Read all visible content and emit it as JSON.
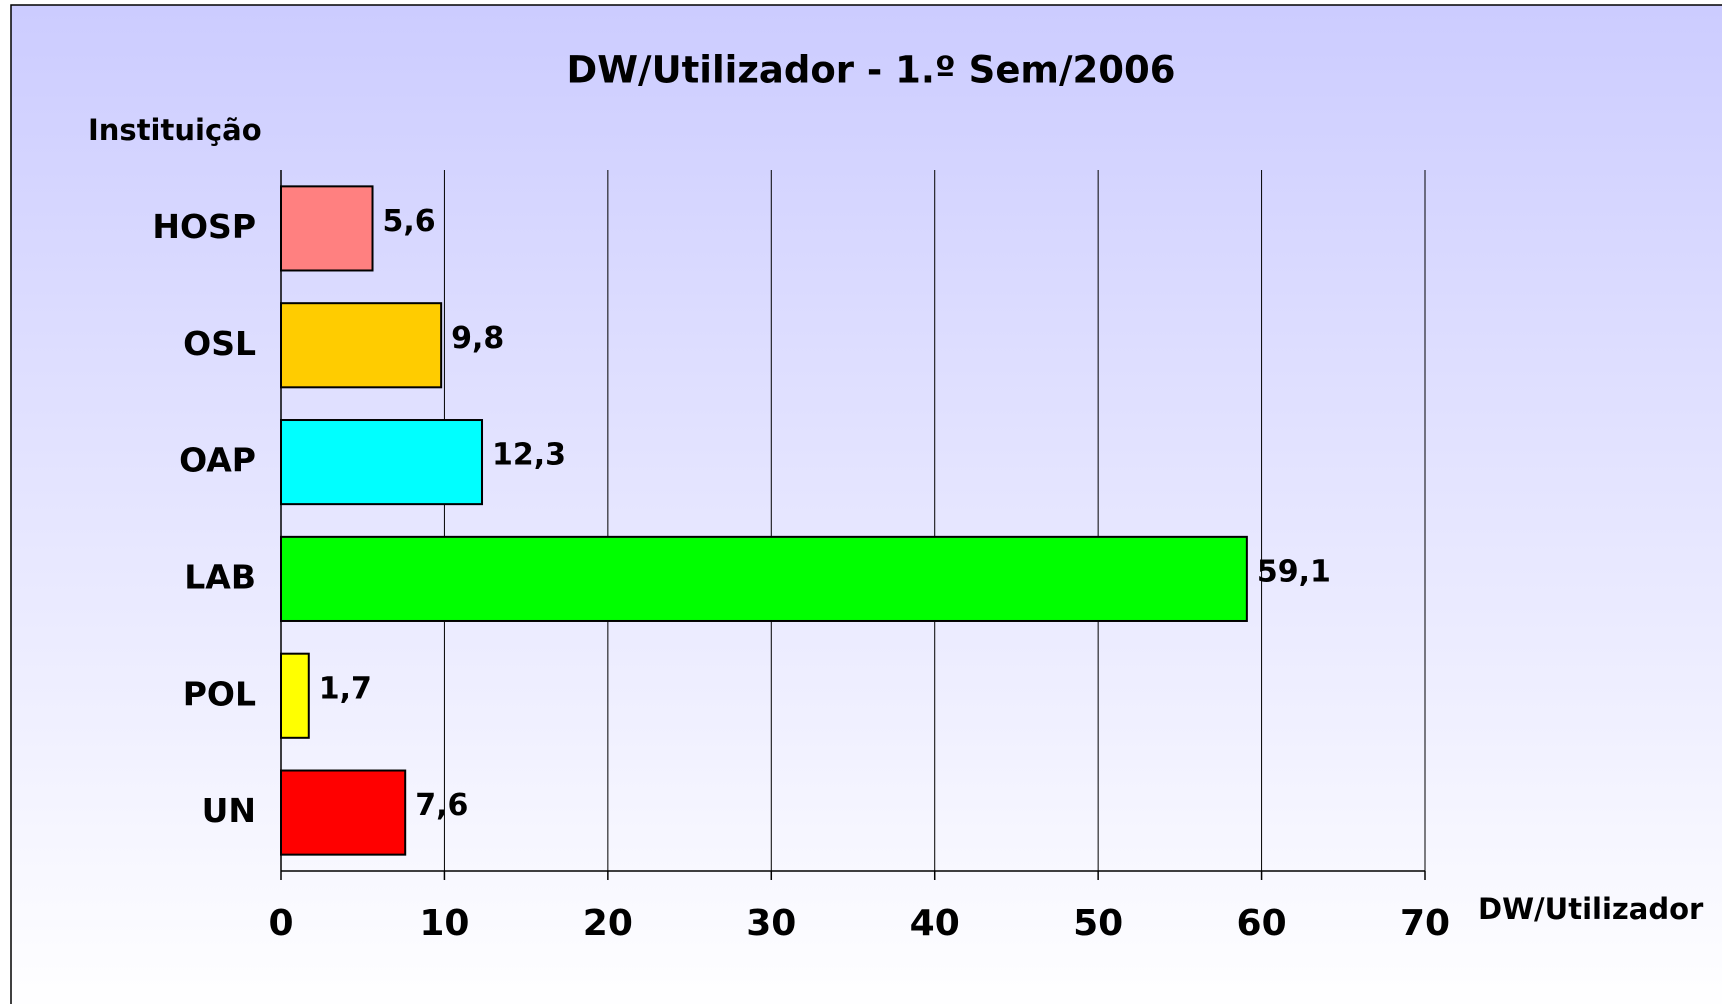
{
  "chart_data": {
    "type": "bar",
    "orientation": "horizontal",
    "title": "DW/Utilizador - 1.º Sem/2006",
    "y_label": "Instituição",
    "x_label": "DW/Utilizador",
    "categories": [
      "HOSP",
      "OSL",
      "OAP",
      "LAB",
      "POL",
      "UN"
    ],
    "values": [
      5.6,
      9.8,
      12.3,
      59.1,
      1.7,
      7.6
    ],
    "value_labels": [
      "5,6",
      "9,8",
      "12,3",
      "59,1",
      "1,7",
      "7,6"
    ],
    "colors": [
      "#ff8080",
      "#ffcc00",
      "#00ffff",
      "#00ff00",
      "#ffff00",
      "#ff0000"
    ],
    "xlim": [
      0,
      70
    ],
    "xticks": [
      0,
      10,
      20,
      30,
      40,
      50,
      60,
      70
    ],
    "grid": true
  }
}
